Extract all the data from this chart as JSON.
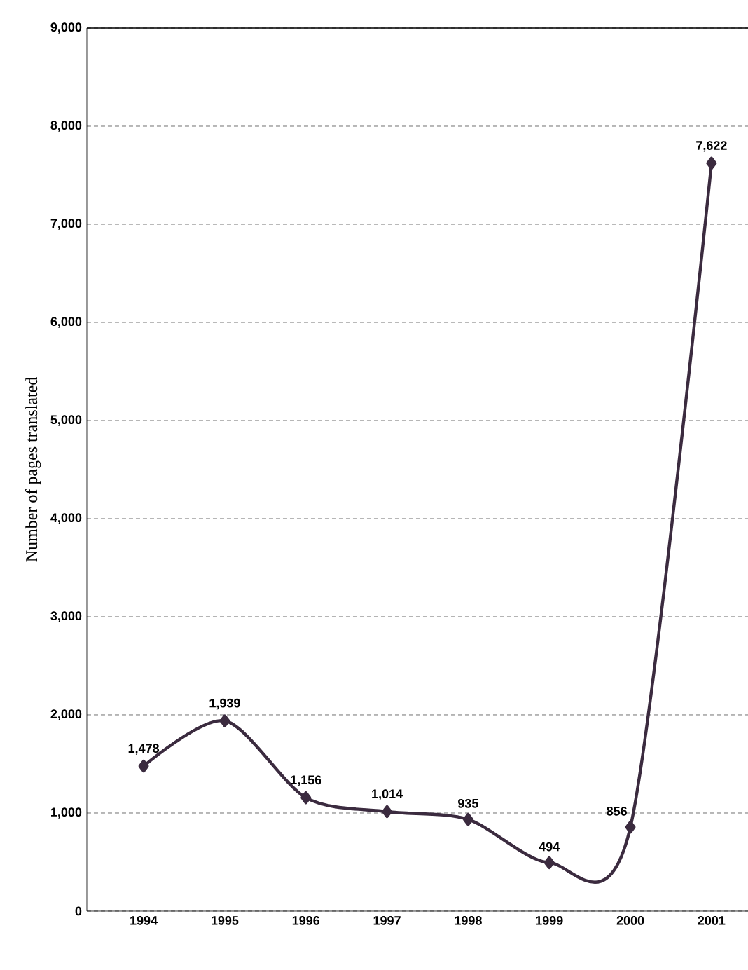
{
  "chart_data": {
    "type": "line",
    "ylabel": "Number of pages translated",
    "categories": [
      "1994",
      "1995",
      "1996",
      "1997",
      "1998",
      "1999",
      "2000",
      "2001"
    ],
    "series": [
      {
        "color": "#3b2b3f",
        "values": [
          1478,
          1939,
          1156,
          1014,
          935,
          494,
          856,
          7622
        ],
        "value_labels": [
          "1,478",
          "1,939",
          "1,156",
          "1,014",
          "935",
          "494",
          "856",
          "7,622"
        ]
      }
    ],
    "ylim": [
      0,
      9000
    ],
    "yticks": [
      {
        "value": 0,
        "label": "0"
      },
      {
        "value": 1000,
        "label": "1,000"
      },
      {
        "value": 2000,
        "label": "2,000"
      },
      {
        "value": 3000,
        "label": "3,000"
      },
      {
        "value": 4000,
        "label": "4,000"
      },
      {
        "value": 5000,
        "label": "5,000"
      },
      {
        "value": 6000,
        "label": "6,000"
      },
      {
        "value": 7000,
        "label": "7,000"
      },
      {
        "value": 8000,
        "label": "8,000"
      },
      {
        "value": 9000,
        "label": "9,000"
      }
    ],
    "grid": "y",
    "marker": "diamond",
    "line_style": "solid"
  }
}
